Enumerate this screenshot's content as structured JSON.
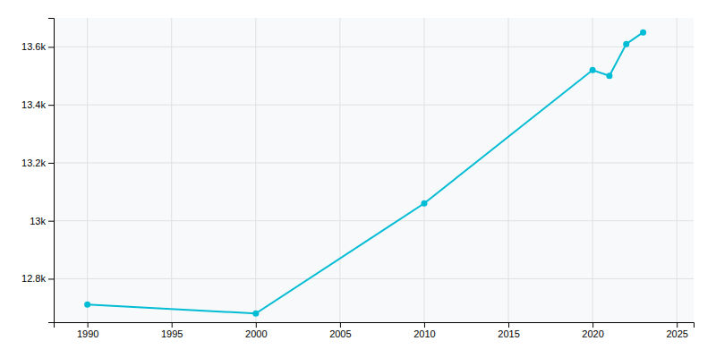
{
  "chart_data": {
    "type": "line",
    "x": [
      1990,
      2000,
      2010,
      2020,
      2021,
      2022,
      2023
    ],
    "values": [
      12711,
      12680,
      13060,
      13520,
      13500,
      13610,
      13650
    ],
    "color": "#00bcd4",
    "marker": "circle",
    "xlim": [
      1988,
      2026
    ],
    "ylim": [
      12650,
      13700
    ],
    "xticks": [
      1990,
      1995,
      2000,
      2005,
      2010,
      2015,
      2020,
      2025
    ],
    "yticks": [
      {
        "value": 12800,
        "label": "12.8k"
      },
      {
        "value": 13000,
        "label": "13k"
      },
      {
        "value": 13200,
        "label": "13.2k"
      },
      {
        "value": 13400,
        "label": "13.4k"
      },
      {
        "value": 13600,
        "label": "13.6k"
      }
    ],
    "grid": true
  }
}
